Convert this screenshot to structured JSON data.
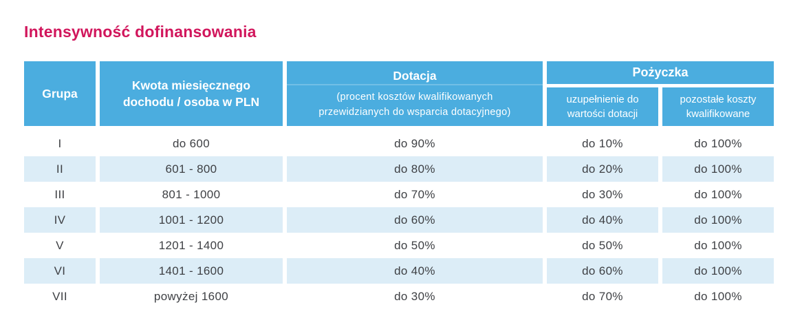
{
  "title": "Intensywność dofinansowania",
  "colors": {
    "page_background": "#ffffff",
    "title_accent": "#d1165c",
    "header_blue": "#4baddf",
    "stripe_blue": "#dcedf7",
    "header_text": "#ffffff",
    "body_text": "#3e4044"
  },
  "table": {
    "header": {
      "group": "Grupa",
      "income": "Kwota miesięcznego dochodu / osoba w PLN",
      "grant_title": "Dotacja",
      "grant_subtitle": "(procent kosztów kwalifikowanych przewidzianych do wsparcia dotacyjnego)",
      "loan_title": "Pożyczka",
      "loan_topup": "uzupełnienie do wartości dotacji",
      "loan_other": "pozostałe koszty kwalifikowane"
    },
    "rows": [
      {
        "group": "I",
        "income": "do 600",
        "grant": "do 90%",
        "loan_topup": "do 10%",
        "loan_other": "do 100%"
      },
      {
        "group": "II",
        "income": "601 - 800",
        "grant": "do 80%",
        "loan_topup": "do 20%",
        "loan_other": "do 100%"
      },
      {
        "group": "III",
        "income": "801 - 1000",
        "grant": "do 70%",
        "loan_topup": "do 30%",
        "loan_other": "do 100%"
      },
      {
        "group": "IV",
        "income": "1001 - 1200",
        "grant": "do 60%",
        "loan_topup": "do 40%",
        "loan_other": "do 100%"
      },
      {
        "group": "V",
        "income": "1201 - 1400",
        "grant": "do 50%",
        "loan_topup": "do 50%",
        "loan_other": "do 100%"
      },
      {
        "group": "VI",
        "income": "1401 - 1600",
        "grant": "do 40%",
        "loan_topup": "do 60%",
        "loan_other": "do 100%"
      },
      {
        "group": "VII",
        "income": "powyżej 1600",
        "grant": "do 30%",
        "loan_topup": "do 70%",
        "loan_other": "do 100%"
      }
    ]
  }
}
